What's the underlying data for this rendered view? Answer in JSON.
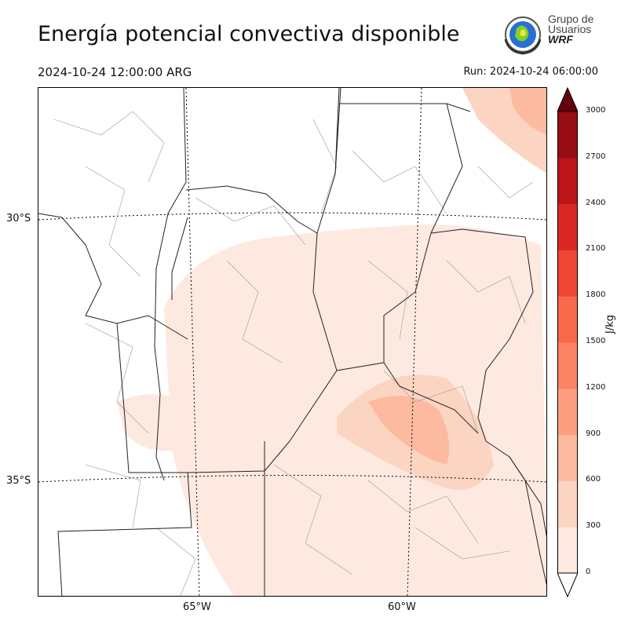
{
  "header": {
    "title": "Energía potencial convectiva disponible",
    "valid_time": "2024-10-24 12:00:00 ARG",
    "run_time": "Run: 2024-10-24 06:00:00"
  },
  "logo": {
    "line1": "Grupo de",
    "line2": "Usuarios",
    "line3": "WRF"
  },
  "map": {
    "lat_labels": [
      "30°S",
      "35°S"
    ],
    "lon_labels": [
      "65°W",
      "60°W"
    ]
  },
  "colorbar": {
    "label": "J/kg",
    "ticks": [
      "0",
      "300",
      "600",
      "900",
      "1200",
      "1500",
      "1800",
      "2100",
      "2400",
      "2700",
      "3000"
    ],
    "colors": [
      "#fee9e0",
      "#fcd4c2",
      "#fcbba1",
      "#fc9f81",
      "#fb8464",
      "#f7694a",
      "#ef4533",
      "#d92723",
      "#bb1419",
      "#980c13",
      "#67000d"
    ]
  }
}
